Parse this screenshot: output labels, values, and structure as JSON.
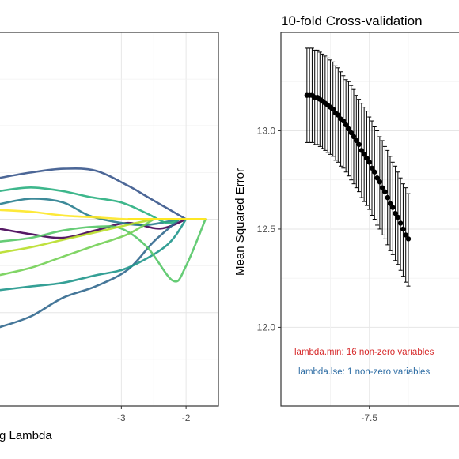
{
  "chart_data": [
    {
      "type": "line",
      "title": "",
      "xlabel": "Log Lambda",
      "ylabel": "",
      "x_ticks": [
        -3,
        -2
      ],
      "xlim": [
        -4.9,
        -1.5
      ],
      "ylim": [
        -1.0,
        1.0
      ],
      "grid": true,
      "series_colors": [
        "#440154",
        "#39568c",
        "#31688e",
        "#287d8e",
        "#1f968b",
        "#29af7f",
        "#55c667",
        "#73d055",
        "#b8de29",
        "#fde725"
      ],
      "series": [
        {
          "x": [
            -4.9,
            -4.4,
            -3.9,
            -3.4,
            -2.9,
            -2.4,
            -2.0
          ],
          "values": [
            -0.05,
            -0.08,
            -0.1,
            -0.06,
            -0.02,
            -0.05,
            0.0
          ]
        },
        {
          "x": [
            -4.9,
            -4.4,
            -3.9,
            -3.4,
            -2.9,
            -2.6,
            -2.3,
            -2.0
          ],
          "values": [
            0.22,
            0.25,
            0.27,
            0.26,
            0.18,
            0.12,
            0.06,
            0.0
          ]
        },
        {
          "x": [
            -4.9,
            -4.4,
            -3.9,
            -3.4,
            -2.9,
            -2.5,
            -2.1
          ],
          "values": [
            -0.58,
            -0.52,
            -0.42,
            -0.36,
            -0.27,
            -0.12,
            0.0
          ]
        },
        {
          "x": [
            -4.9,
            -4.4,
            -3.9,
            -3.5,
            -3.0,
            -2.6,
            -2.1
          ],
          "values": [
            0.08,
            0.11,
            0.09,
            0.02,
            -0.02,
            -0.03,
            0.0
          ]
        },
        {
          "x": [
            -4.9,
            -4.4,
            -3.9,
            -3.4,
            -2.9,
            -2.3,
            -2.0
          ],
          "values": [
            -0.38,
            -0.36,
            -0.34,
            -0.3,
            -0.26,
            -0.14,
            0.0
          ]
        },
        {
          "x": [
            -4.9,
            -4.4,
            -3.9,
            -3.5,
            -3.0,
            -2.6,
            -2.3,
            -2.1
          ],
          "values": [
            0.15,
            0.17,
            0.15,
            0.12,
            0.09,
            0.03,
            -0.02,
            0.0
          ]
        },
        {
          "x": [
            -4.9,
            -4.4,
            -3.9,
            -3.4,
            -3.0,
            -2.6,
            -2.2,
            -2.0,
            -1.7
          ],
          "values": [
            -0.12,
            -0.1,
            -0.06,
            -0.04,
            -0.05,
            -0.15,
            -0.33,
            -0.25,
            0.0
          ]
        },
        {
          "x": [
            -4.9,
            -4.4,
            -3.9,
            -3.4,
            -2.9,
            -2.5
          ],
          "values": [
            -0.3,
            -0.26,
            -0.2,
            -0.14,
            -0.08,
            0.0
          ]
        },
        {
          "x": [
            -4.9,
            -4.4,
            -3.9,
            -3.4,
            -2.9,
            -2.5
          ],
          "values": [
            -0.18,
            -0.15,
            -0.11,
            -0.07,
            -0.03,
            0.0
          ]
        },
        {
          "x": [
            -4.9,
            -4.4,
            -3.9,
            -3.4,
            -2.9,
            -2.4,
            -1.7
          ],
          "values": [
            0.05,
            0.04,
            0.02,
            0.01,
            0.0,
            0.0,
            0.0
          ]
        }
      ]
    },
    {
      "type": "scatter",
      "title": "10-fold Cross-validation",
      "xlabel": "",
      "ylabel": "Mean Squared Error",
      "x_ticks": [
        -7.5
      ],
      "y_ticks": [
        12.0,
        12.5,
        13.0
      ],
      "xlim": [
        -8.35,
        -6.6
      ],
      "ylim": [
        11.6,
        13.5
      ],
      "grid": true,
      "point_color": "#000000",
      "x": [
        -8.1,
        -8.075,
        -8.05,
        -8.025,
        -8.0,
        -7.975,
        -7.95,
        -7.925,
        -7.9,
        -7.875,
        -7.85,
        -7.825,
        -7.8,
        -7.775,
        -7.75,
        -7.725,
        -7.7,
        -7.675,
        -7.65,
        -7.625,
        -7.6,
        -7.575,
        -7.55,
        -7.525,
        -7.5,
        -7.475,
        -7.45,
        -7.425,
        -7.4,
        -7.375,
        -7.35,
        -7.325,
        -7.3,
        -7.275,
        -7.25,
        -7.225,
        -7.2,
        -7.175,
        -7.15,
        -7.125
      ],
      "values": [
        13.18,
        13.18,
        13.18,
        13.17,
        13.17,
        13.16,
        13.15,
        13.14,
        13.13,
        13.12,
        13.11,
        13.09,
        13.08,
        13.06,
        13.05,
        13.03,
        13.01,
        12.99,
        12.97,
        12.95,
        12.93,
        12.9,
        12.88,
        12.86,
        12.84,
        12.81,
        12.79,
        12.76,
        12.74,
        12.71,
        12.69,
        12.66,
        12.63,
        12.61,
        12.58,
        12.56,
        12.53,
        12.5,
        12.47,
        12.45
      ],
      "error_upper": [
        13.42,
        13.42,
        13.42,
        13.41,
        13.41,
        13.4,
        13.39,
        13.38,
        13.37,
        13.36,
        13.35,
        13.33,
        13.32,
        13.3,
        13.28,
        13.26,
        13.25,
        13.23,
        13.21,
        13.18,
        13.16,
        13.14,
        13.12,
        13.1,
        13.07,
        13.05,
        13.02,
        13.0,
        12.97,
        12.95,
        12.92,
        12.9,
        12.87,
        12.84,
        12.82,
        12.79,
        12.76,
        12.73,
        12.71,
        12.68
      ],
      "error_lower": [
        12.94,
        12.94,
        12.94,
        12.93,
        12.93,
        12.92,
        12.91,
        12.9,
        12.89,
        12.88,
        12.87,
        12.85,
        12.84,
        12.82,
        12.81,
        12.79,
        12.77,
        12.75,
        12.73,
        12.71,
        12.69,
        12.66,
        12.64,
        12.62,
        12.6,
        12.57,
        12.55,
        12.52,
        12.5,
        12.47,
        12.45,
        12.42,
        12.39,
        12.37,
        12.34,
        12.32,
        12.29,
        12.26,
        12.23,
        12.21
      ],
      "annotations": [
        {
          "text": "lambda.min: 16 non-zero variables",
          "color": "#d62728",
          "x": -7.5,
          "y": 12.0
        },
        {
          "text": "lambda.lse: 1 non-zero variables",
          "color": "#2e6da4",
          "x": -7.5,
          "y": 11.9
        }
      ]
    }
  ]
}
